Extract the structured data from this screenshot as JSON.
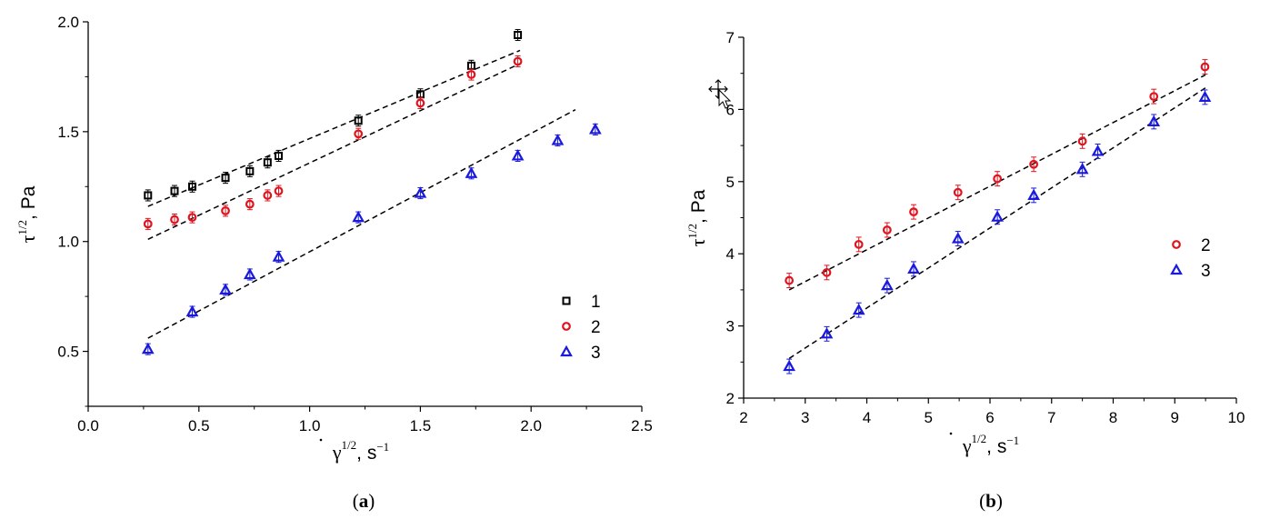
{
  "chart_data": [
    {
      "type": "scatter",
      "panel_label": {
        "open": "(",
        "letter": "a",
        "close": ")"
      },
      "xlabel": {
        "symbol": "γ",
        "sup": "1/2",
        "unit": ", s",
        "unit_sup": "−1"
      },
      "ylabel": {
        "symbol": "τ",
        "sup": "1/2",
        "unit": ", Pa"
      },
      "xlim": [
        0,
        2.5
      ],
      "ylim": [
        0.25,
        2.0
      ],
      "xticks": [
        "0.0",
        "0.5",
        "1.0",
        "1.5",
        "2.0",
        "2.5"
      ],
      "yticks": [
        "0.5",
        "1.0",
        "1.5",
        "2.0"
      ],
      "xtick_values": [
        0,
        0.5,
        1.0,
        1.5,
        2.0,
        2.5
      ],
      "ytick_values": [
        0.5,
        1.0,
        1.5,
        2.0
      ],
      "grid": false,
      "legend_position": "lower-right",
      "series": [
        {
          "name": "1",
          "marker": "square",
          "color": "#000000",
          "points": [
            [
              0.27,
              1.21
            ],
            [
              0.39,
              1.23
            ],
            [
              0.47,
              1.25
            ],
            [
              0.62,
              1.29
            ],
            [
              0.73,
              1.32
            ],
            [
              0.81,
              1.36
            ],
            [
              0.86,
              1.39
            ],
            [
              1.22,
              1.55
            ],
            [
              1.5,
              1.67
            ],
            [
              1.73,
              1.8
            ],
            [
              1.94,
              1.94
            ]
          ],
          "error": 0.025,
          "fit": [
            [
              0.27,
              1.16
            ],
            [
              1.95,
              1.87
            ]
          ]
        },
        {
          "name": "2",
          "marker": "circle",
          "color": "#e0141e",
          "points": [
            [
              0.27,
              1.08
            ],
            [
              0.39,
              1.1
            ],
            [
              0.47,
              1.11
            ],
            [
              0.62,
              1.14
            ],
            [
              0.73,
              1.17
            ],
            [
              0.81,
              1.21
            ],
            [
              0.86,
              1.23
            ],
            [
              1.22,
              1.49
            ],
            [
              1.5,
              1.63
            ],
            [
              1.73,
              1.76
            ],
            [
              1.94,
              1.82
            ]
          ],
          "error": 0.025,
          "fit": [
            [
              0.27,
              1.01
            ],
            [
              1.95,
              1.81
            ]
          ]
        },
        {
          "name": "3",
          "marker": "triangle",
          "color": "#1a1adc",
          "points": [
            [
              0.27,
              0.51
            ],
            [
              0.47,
              0.68
            ],
            [
              0.62,
              0.78
            ],
            [
              0.73,
              0.85
            ],
            [
              0.86,
              0.93
            ],
            [
              1.22,
              1.11
            ],
            [
              1.5,
              1.22
            ],
            [
              1.73,
              1.31
            ],
            [
              1.94,
              1.39
            ],
            [
              2.12,
              1.46
            ],
            [
              2.29,
              1.51
            ]
          ],
          "error": 0.025,
          "fit": [
            [
              0.27,
              0.56
            ],
            [
              2.2,
              1.6
            ]
          ]
        }
      ]
    },
    {
      "type": "scatter",
      "panel_label": {
        "open": "(",
        "letter": "b",
        "close": ")"
      },
      "xlabel": {
        "symbol": "γ",
        "sup": "1/2",
        "unit": ", s",
        "unit_sup": "−1"
      },
      "ylabel": {
        "symbol": "τ",
        "sup": "1/2",
        "unit": ", Pa"
      },
      "xlim": [
        2,
        10
      ],
      "ylim": [
        2,
        7
      ],
      "xticks": [
        "2",
        "3",
        "4",
        "5",
        "6",
        "7",
        "8",
        "9",
        "10"
      ],
      "yticks": [
        "2",
        "3",
        "4",
        "5",
        "6",
        "7"
      ],
      "xtick_values": [
        2,
        3,
        4,
        5,
        6,
        7,
        8,
        9,
        10
      ],
      "ytick_values": [
        2,
        3,
        4,
        5,
        6,
        7
      ],
      "grid": false,
      "legend_position": "right",
      "series": [
        {
          "name": "2",
          "marker": "circle",
          "color": "#e0141e",
          "points": [
            [
              2.74,
              3.63
            ],
            [
              3.35,
              3.74
            ],
            [
              3.87,
              4.13
            ],
            [
              4.33,
              4.33
            ],
            [
              4.76,
              4.58
            ],
            [
              5.48,
              4.85
            ],
            [
              6.12,
              5.04
            ],
            [
              6.71,
              5.24
            ],
            [
              7.5,
              5.56
            ],
            [
              8.66,
              6.18
            ],
            [
              9.49,
              6.59
            ]
          ],
          "error": 0.1,
          "fit": [
            [
              2.74,
              3.5
            ],
            [
              9.5,
              6.48
            ]
          ]
        },
        {
          "name": "3",
          "marker": "triangle",
          "color": "#1a1adc",
          "points": [
            [
              2.74,
              2.44
            ],
            [
              3.35,
              2.89
            ],
            [
              3.87,
              3.22
            ],
            [
              4.33,
              3.56
            ],
            [
              4.76,
              3.79
            ],
            [
              5.48,
              4.21
            ],
            [
              6.12,
              4.51
            ],
            [
              6.71,
              4.81
            ],
            [
              7.5,
              5.17
            ],
            [
              7.75,
              5.42
            ],
            [
              8.66,
              5.83
            ],
            [
              9.49,
              6.17
            ]
          ],
          "error": 0.1,
          "fit": [
            [
              2.74,
              2.55
            ],
            [
              9.5,
              6.3
            ]
          ]
        }
      ]
    }
  ]
}
